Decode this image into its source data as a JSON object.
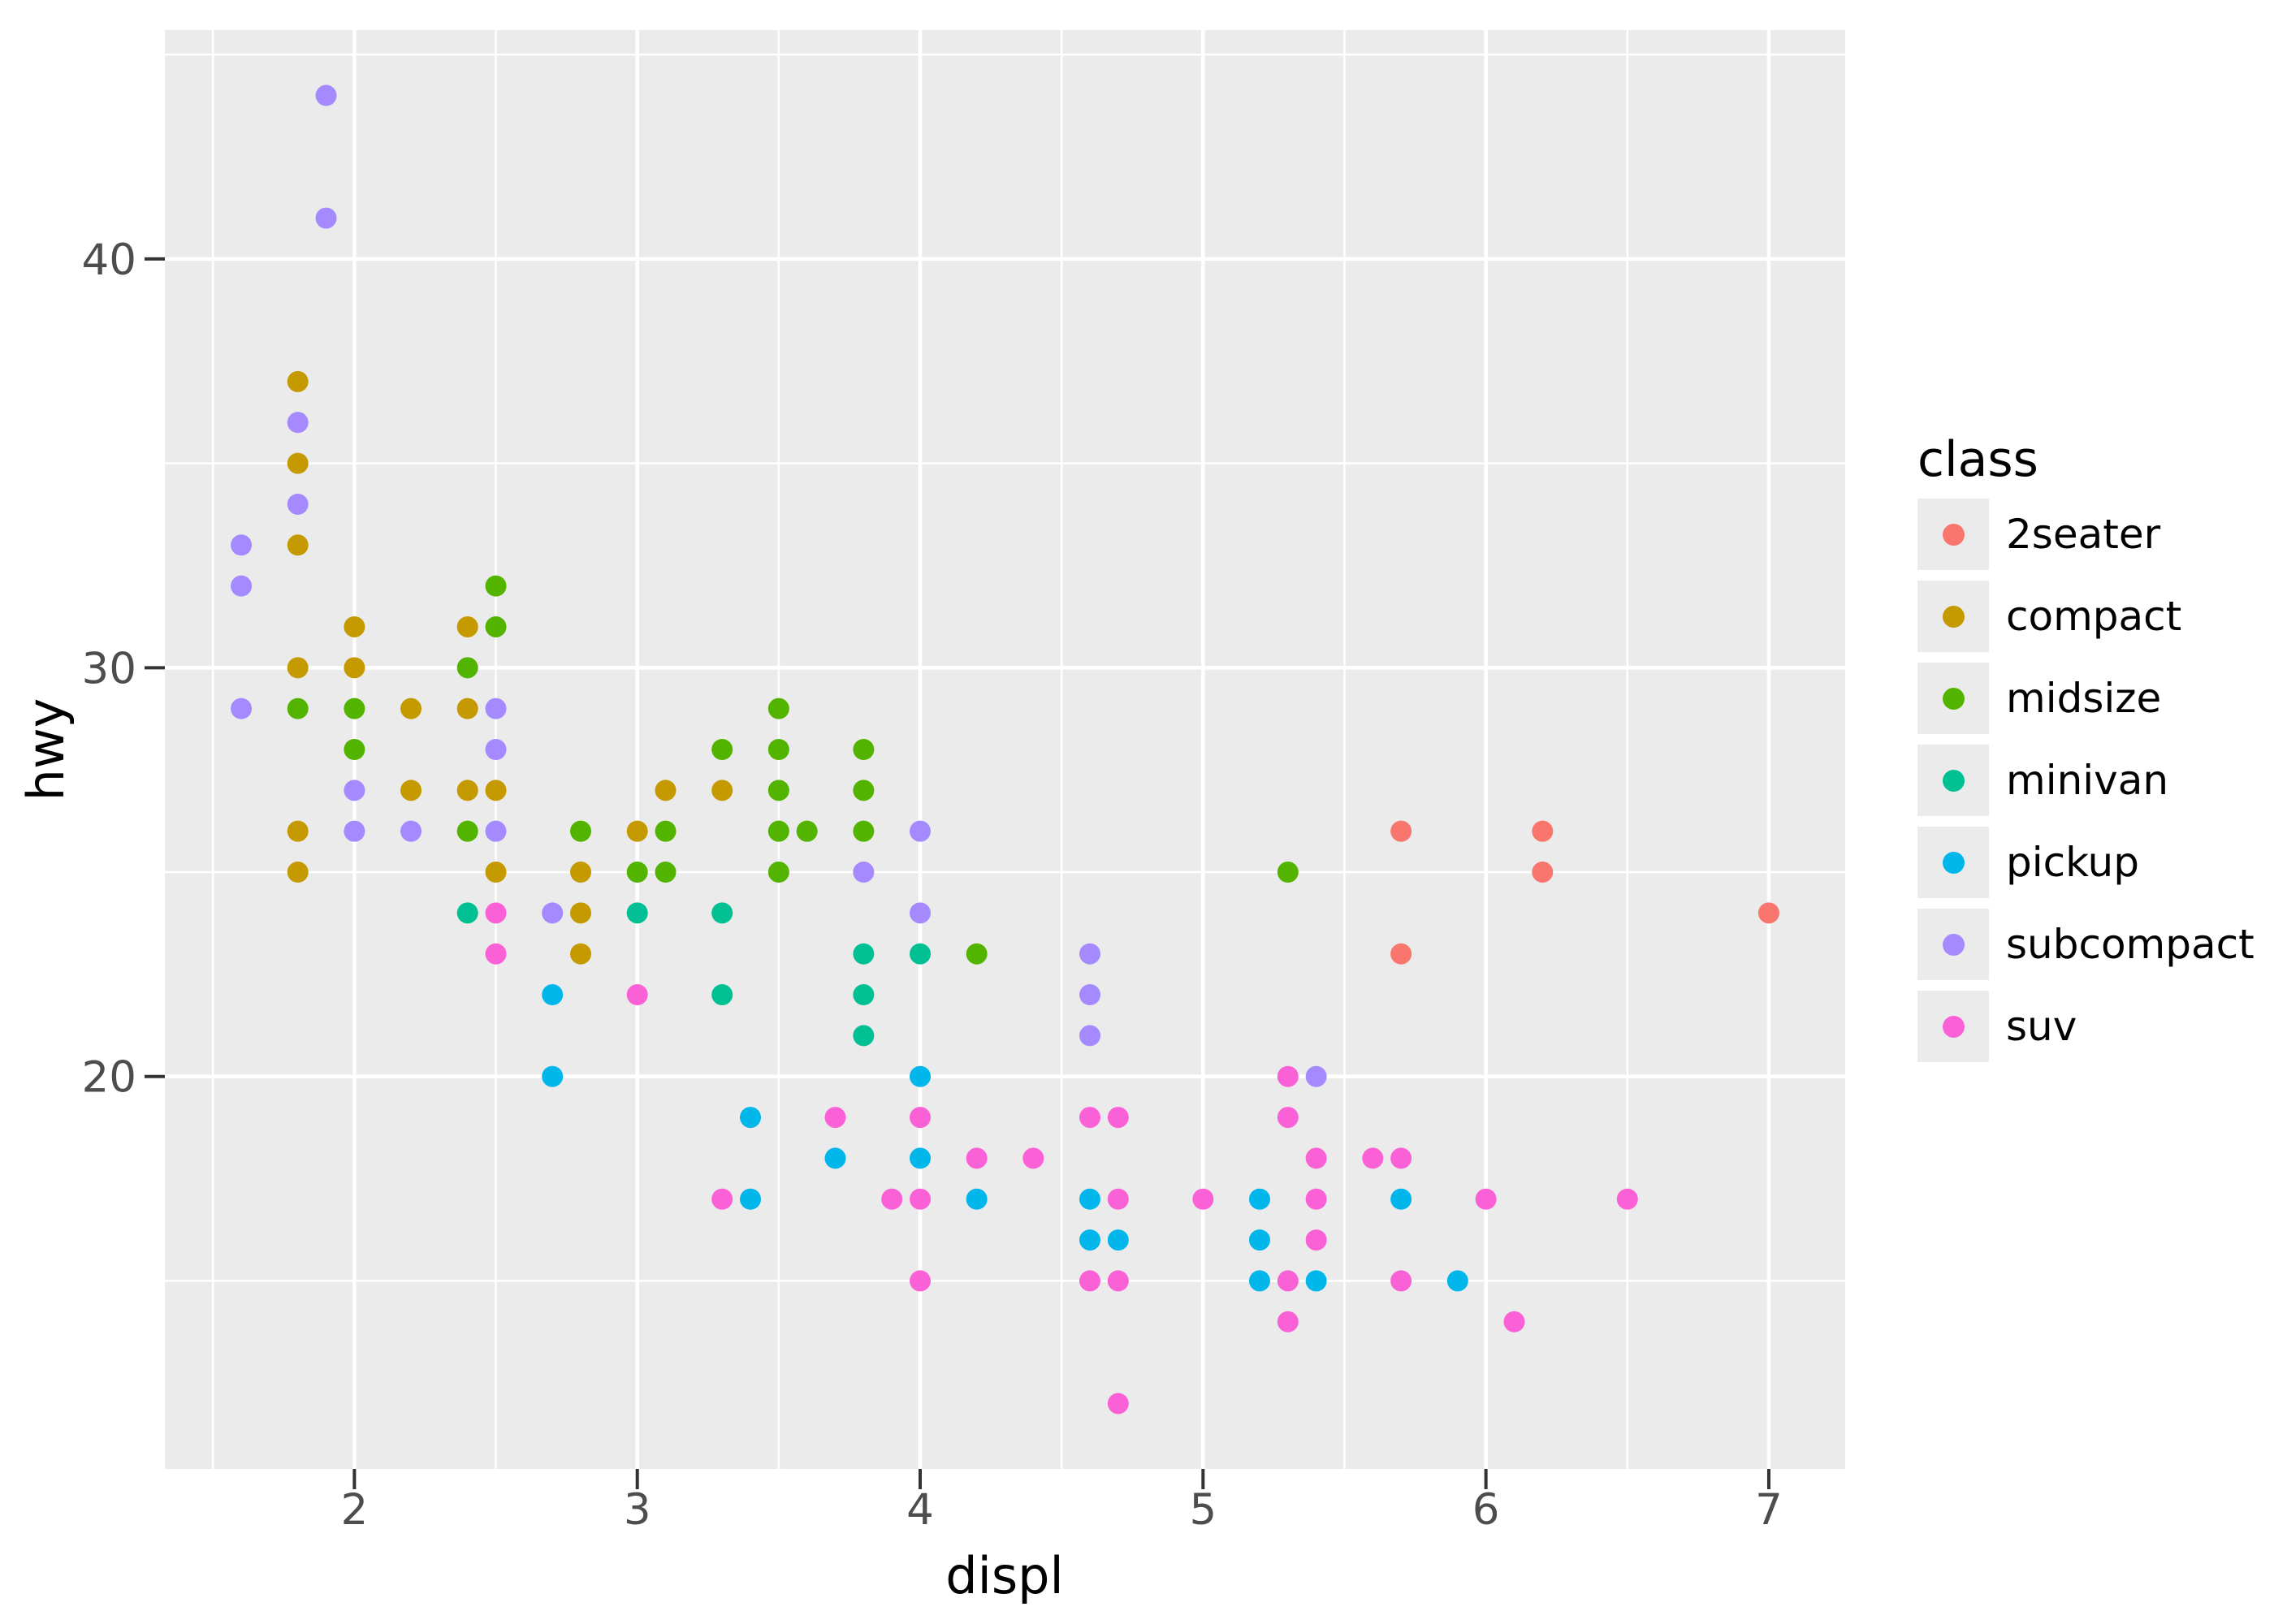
{
  "chart_data": {
    "type": "scatter",
    "title": "",
    "xlabel": "displ",
    "ylabel": "hwy",
    "x_ticks": [
      2,
      3,
      4,
      5,
      6,
      7
    ],
    "y_ticks": [
      20,
      30,
      40
    ],
    "x_minor_ticks": [
      1.5,
      2.5,
      3.5,
      4.5,
      5.5,
      6.5
    ],
    "y_minor_ticks": [
      15,
      25,
      35,
      45
    ],
    "xlim": [
      1.33,
      7.27
    ],
    "ylim": [
      10.4,
      45.6
    ],
    "grid": true,
    "legend_position": "right",
    "point_radius_px": 13,
    "colors": {
      "panel_background": "#EBEBEB",
      "gridline": "#FFFFFF",
      "tick_mark": "#333333",
      "tick_label": "#4D4D4D",
      "axis_title": "#000000",
      "legend_key_background": "#EBEBEB"
    },
    "legend": {
      "title": "class",
      "entries": [
        {
          "label": "2seater",
          "color": "#F8766D"
        },
        {
          "label": "compact",
          "color": "#C49A00"
        },
        {
          "label": "midsize",
          "color": "#53B400"
        },
        {
          "label": "minivan",
          "color": "#00C094"
        },
        {
          "label": "pickup",
          "color": "#00B6EB"
        },
        {
          "label": "subcompact",
          "color": "#A58AFF"
        },
        {
          "label": "suv",
          "color": "#FB61D7"
        }
      ]
    },
    "series": [
      {
        "name": "2seater",
        "color": "#F8766D",
        "points": [
          [
            5.7,
            26
          ],
          [
            5.7,
            23
          ],
          [
            6.2,
            26
          ],
          [
            6.2,
            25
          ],
          [
            7.0,
            24
          ]
        ]
      },
      {
        "name": "compact",
        "color": "#C49A00",
        "points": [
          [
            1.8,
            37
          ],
          [
            1.8,
            35
          ],
          [
            1.8,
            33
          ],
          [
            1.8,
            30
          ],
          [
            1.8,
            26
          ],
          [
            1.8,
            25
          ],
          [
            2.0,
            31
          ],
          [
            2.0,
            30
          ],
          [
            2.2,
            29
          ],
          [
            2.2,
            27
          ],
          [
            2.4,
            31
          ],
          [
            2.4,
            29
          ],
          [
            2.4,
            27
          ],
          [
            2.5,
            27
          ],
          [
            2.5,
            25
          ],
          [
            2.8,
            25
          ],
          [
            2.8,
            24
          ],
          [
            2.8,
            23
          ],
          [
            3.0,
            26
          ],
          [
            3.1,
            27
          ],
          [
            3.3,
            27
          ]
        ]
      },
      {
        "name": "midsize",
        "color": "#53B400",
        "points": [
          [
            1.8,
            29
          ],
          [
            2.0,
            29
          ],
          [
            2.0,
            28
          ],
          [
            2.4,
            30
          ],
          [
            2.4,
            26
          ],
          [
            2.5,
            32
          ],
          [
            2.5,
            31
          ],
          [
            2.8,
            26
          ],
          [
            3.0,
            25
          ],
          [
            3.1,
            26
          ],
          [
            3.1,
            25
          ],
          [
            3.3,
            28
          ],
          [
            3.5,
            29
          ],
          [
            3.5,
            28
          ],
          [
            3.5,
            27
          ],
          [
            3.5,
            26
          ],
          [
            3.5,
            25
          ],
          [
            3.6,
            26
          ],
          [
            3.8,
            28
          ],
          [
            3.8,
            27
          ],
          [
            3.8,
            26
          ],
          [
            4.2,
            23
          ],
          [
            5.3,
            25
          ]
        ]
      },
      {
        "name": "minivan",
        "color": "#00C094",
        "points": [
          [
            2.4,
            24
          ],
          [
            3.0,
            24
          ],
          [
            3.3,
            24
          ],
          [
            3.3,
            22
          ],
          [
            3.8,
            23
          ],
          [
            3.8,
            22
          ],
          [
            3.8,
            21
          ],
          [
            4.0,
            23
          ]
        ]
      },
      {
        "name": "pickup",
        "color": "#00B6EB",
        "points": [
          [
            2.7,
            22
          ],
          [
            2.7,
            20
          ],
          [
            3.4,
            19
          ],
          [
            3.4,
            17
          ],
          [
            3.7,
            18
          ],
          [
            4.0,
            20
          ],
          [
            4.0,
            18
          ],
          [
            4.2,
            17
          ],
          [
            4.6,
            17
          ],
          [
            4.6,
            16
          ],
          [
            4.7,
            16
          ],
          [
            5.2,
            17
          ],
          [
            5.2,
            16
          ],
          [
            5.2,
            15
          ],
          [
            5.4,
            15
          ],
          [
            5.7,
            17
          ],
          [
            5.9,
            15
          ]
        ]
      },
      {
        "name": "subcompact",
        "color": "#A58AFF",
        "points": [
          [
            1.6,
            33
          ],
          [
            1.6,
            32
          ],
          [
            1.6,
            29
          ],
          [
            1.8,
            36
          ],
          [
            1.8,
            34
          ],
          [
            1.9,
            44
          ],
          [
            1.9,
            41
          ],
          [
            2.0,
            27
          ],
          [
            2.0,
            26
          ],
          [
            2.2,
            26
          ],
          [
            2.5,
            29
          ],
          [
            2.5,
            28
          ],
          [
            2.5,
            26
          ],
          [
            2.7,
            24
          ],
          [
            3.8,
            25
          ],
          [
            4.0,
            26
          ],
          [
            4.0,
            24
          ],
          [
            4.6,
            23
          ],
          [
            4.6,
            22
          ],
          [
            4.6,
            21
          ],
          [
            5.4,
            20
          ]
        ]
      },
      {
        "name": "suv",
        "color": "#FB61D7",
        "points": [
          [
            2.5,
            24
          ],
          [
            2.5,
            23
          ],
          [
            3.0,
            22
          ],
          [
            3.3,
            17
          ],
          [
            3.7,
            19
          ],
          [
            3.9,
            17
          ],
          [
            4.0,
            19
          ],
          [
            4.0,
            17
          ],
          [
            4.0,
            15
          ],
          [
            4.2,
            18
          ],
          [
            4.4,
            18
          ],
          [
            4.6,
            19
          ],
          [
            4.6,
            15
          ],
          [
            4.7,
            19
          ],
          [
            4.7,
            17
          ],
          [
            4.7,
            15
          ],
          [
            4.7,
            12
          ],
          [
            5.0,
            17
          ],
          [
            5.3,
            20
          ],
          [
            5.3,
            19
          ],
          [
            5.3,
            15
          ],
          [
            5.3,
            14
          ],
          [
            5.4,
            18
          ],
          [
            5.4,
            17
          ],
          [
            5.4,
            16
          ],
          [
            5.6,
            18
          ],
          [
            5.7,
            18
          ],
          [
            5.7,
            15
          ],
          [
            6.0,
            17
          ],
          [
            6.1,
            14
          ],
          [
            6.5,
            17
          ]
        ]
      }
    ]
  }
}
